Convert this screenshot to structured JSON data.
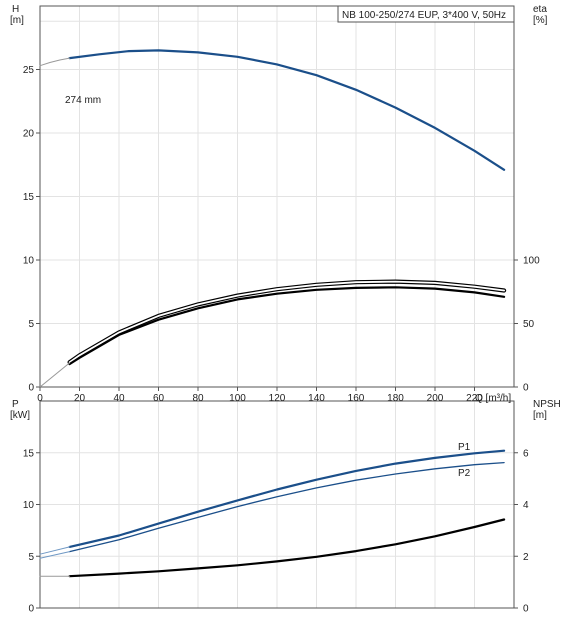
{
  "chart_data": [
    {
      "type": "line",
      "title": "NB 100-250/274 EUP, 3*400 V, 50Hz",
      "ylabel_left": "H\n[m]",
      "ylabel_right": "eta\n[%]",
      "xlabel": "Q [m³/h]",
      "xlim": [
        0,
        240
      ],
      "xticks": [
        0,
        20,
        40,
        60,
        80,
        100,
        120,
        140,
        160,
        180,
        200,
        220
      ],
      "ylim_left": [
        0,
        30
      ],
      "yticks_left": [
        0,
        5,
        10,
        15,
        20,
        25
      ],
      "ylim_right": [
        0,
        300
      ],
      "yticks_right": [
        0,
        50,
        100
      ],
      "grid": true,
      "series": [
        {
          "name": "274 mm",
          "axis": "left",
          "style": "solid",
          "color": "#1b4f8a",
          "x": [
            15,
            30,
            45,
            60,
            80,
            100,
            120,
            140,
            160,
            180,
            200,
            220,
            235
          ],
          "y": [
            25.9,
            26.2,
            26.45,
            26.5,
            26.35,
            26.0,
            25.4,
            24.55,
            23.4,
            22.0,
            20.4,
            18.6,
            17.1
          ]
        },
        {
          "name": "",
          "axis": "left",
          "style": "extension",
          "color": "#999999",
          "x": [
            0,
            5,
            10,
            15
          ],
          "y": [
            25.3,
            25.55,
            25.75,
            25.9
          ]
        },
        {
          "name": "",
          "axis": "right",
          "style": "outline",
          "color": "#000000",
          "x": [
            15,
            20,
            40,
            60,
            80,
            100,
            120,
            140,
            160,
            180,
            200,
            220,
            235
          ],
          "y": [
            19.5,
            25,
            43,
            56,
            65,
            72,
            77,
            80.5,
            82.5,
            83,
            82,
            79,
            76
          ]
        },
        {
          "name": "",
          "axis": "right",
          "style": "solid",
          "color": "#000000",
          "x": [
            15,
            20,
            40,
            60,
            80,
            100,
            120,
            140,
            160,
            180,
            200,
            220,
            235
          ],
          "y": [
            18,
            23,
            41,
            53,
            62,
            69,
            73.5,
            76.5,
            78,
            78.5,
            77.5,
            74.5,
            71
          ]
        },
        {
          "name": "",
          "axis": "right",
          "style": "extension",
          "color": "#999999",
          "x": [
            0,
            15
          ],
          "y": [
            0,
            19
          ]
        }
      ]
    },
    {
      "type": "line",
      "title": "",
      "ylabel_left": "P\n[kW]",
      "ylabel_right": "NPSH\n[m]",
      "xlim": [
        0,
        240
      ],
      "ylim_left": [
        0,
        20
      ],
      "yticks_left": [
        0,
        5,
        10,
        15
      ],
      "ylim_right": [
        0,
        8
      ],
      "yticks_right": [
        0,
        2,
        4,
        6
      ],
      "grid": true,
      "series": [
        {
          "name": "P1",
          "axis": "left",
          "style": "solid",
          "color": "#1b4f8a",
          "x": [
            15,
            40,
            60,
            80,
            100,
            120,
            140,
            160,
            180,
            200,
            220,
            235
          ],
          "y": [
            5.9,
            7.0,
            8.15,
            9.3,
            10.4,
            11.45,
            12.4,
            13.25,
            13.95,
            14.5,
            14.95,
            15.2
          ]
        },
        {
          "name": "",
          "axis": "left",
          "style": "extension",
          "color": "#6f98c4",
          "x": [
            0,
            15
          ],
          "y": [
            5.2,
            5.9
          ]
        },
        {
          "name": "P2",
          "axis": "left",
          "style": "thin",
          "color": "#1b4f8a",
          "x": [
            15,
            40,
            60,
            80,
            100,
            120,
            140,
            160,
            180,
            200,
            220,
            235
          ],
          "y": [
            5.45,
            6.6,
            7.7,
            8.75,
            9.8,
            10.75,
            11.6,
            12.35,
            12.95,
            13.45,
            13.85,
            14.05
          ]
        },
        {
          "name": "",
          "axis": "left",
          "style": "extension",
          "color": "#6f98c4",
          "x": [
            0,
            15
          ],
          "y": [
            4.8,
            5.45
          ]
        },
        {
          "name": "",
          "axis": "right",
          "style": "solid",
          "color": "#000000",
          "x": [
            15,
            40,
            60,
            80,
            100,
            120,
            140,
            160,
            180,
            200,
            220,
            235
          ],
          "y": [
            1.23,
            1.33,
            1.42,
            1.53,
            1.65,
            1.8,
            1.98,
            2.2,
            2.46,
            2.77,
            3.13,
            3.42
          ]
        },
        {
          "name": "",
          "axis": "right",
          "style": "extension",
          "color": "#999999",
          "x": [
            0,
            15
          ],
          "y": [
            1.23,
            1.23
          ]
        }
      ]
    }
  ]
}
